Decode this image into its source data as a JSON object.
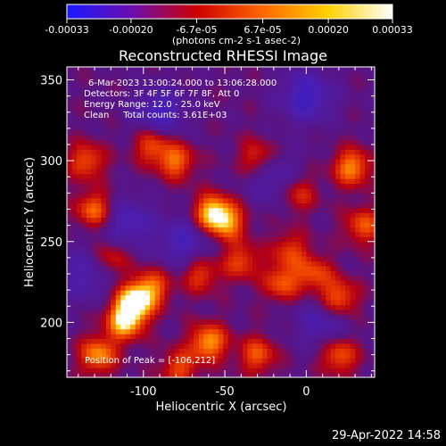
{
  "chart_data": {
    "type": "heatmap",
    "title": "Reconstructed RHESSI Image",
    "xlabel": "Heliocentric X (arcsec)",
    "ylabel": "Heliocentric Y (arcsec)",
    "xlim": [
      -147,
      42
    ],
    "ylim": [
      166,
      358
    ],
    "x_ticks": [
      -100,
      -50,
      0
    ],
    "y_ticks": [
      200,
      250,
      300,
      350
    ],
    "colorbar": {
      "range": [
        -0.00033,
        0.00033
      ],
      "tick_values": [
        -0.00033,
        -0.0002,
        -6.7e-05,
        6.7e-05,
        0.0002,
        0.00033
      ],
      "tick_labels": [
        "-0.00033",
        "-0.00020",
        "-6.7e-05",
        "6.7e-05",
        "0.00020",
        "0.00033"
      ],
      "unit_label": "(photons cm-2 s-1 asec-2)",
      "colors": [
        "#1a1aff",
        "#6a0dad",
        "#cc0000",
        "#ff6600",
        "#ffd000",
        "#ffffff"
      ]
    },
    "annotations": [
      "6-Mar-2023 13:00:24.000 to 13:06:28.000",
      "Detectors: 3F 4F 5F 6F 7F 8F, Att 0",
      "Energy Range: 12.0 - 25.0 keV",
      "Clean     Total counts: 3.61E+03"
    ],
    "peak_label": "Position of Peak = [-106,212]",
    "peak": [
      -106,
      212
    ],
    "blobs": [
      {
        "x": -106,
        "y": 212,
        "v": 1.0
      },
      {
        "x": -112,
        "y": 200,
        "v": 0.75
      },
      {
        "x": -95,
        "y": 222,
        "v": 0.6
      },
      {
        "x": -58,
        "y": 268,
        "v": 0.85
      },
      {
        "x": -48,
        "y": 262,
        "v": 0.6
      },
      {
        "x": -60,
        "y": 188,
        "v": 0.75
      },
      {
        "x": -30,
        "y": 180,
        "v": 0.55
      },
      {
        "x": -78,
        "y": 172,
        "v": 0.5
      },
      {
        "x": -128,
        "y": 180,
        "v": 0.7
      },
      {
        "x": -130,
        "y": 270,
        "v": 0.65
      },
      {
        "x": -135,
        "y": 300,
        "v": 0.55
      },
      {
        "x": -80,
        "y": 300,
        "v": 0.6
      },
      {
        "x": -95,
        "y": 310,
        "v": 0.55
      },
      {
        "x": -30,
        "y": 302,
        "v": 0.5
      },
      {
        "x": 28,
        "y": 296,
        "v": 0.7
      },
      {
        "x": 35,
        "y": 260,
        "v": 0.55
      },
      {
        "x": 20,
        "y": 215,
        "v": 0.65
      },
      {
        "x": 5,
        "y": 230,
        "v": 0.5
      },
      {
        "x": -15,
        "y": 225,
        "v": 0.55
      },
      {
        "x": -40,
        "y": 238,
        "v": 0.5
      },
      {
        "x": -65,
        "y": 230,
        "v": 0.5
      },
      {
        "x": 20,
        "y": 180,
        "v": 0.6
      },
      {
        "x": -10,
        "y": 245,
        "v": 0.45
      },
      {
        "x": -120,
        "y": 240,
        "v": 0.45
      },
      {
        "x": -5,
        "y": 280,
        "v": 0.45
      }
    ],
    "cold_spots": [
      {
        "x": -90,
        "y": 330,
        "v": -0.5
      },
      {
        "x": 0,
        "y": 340,
        "v": -0.55
      },
      {
        "x": -20,
        "y": 290,
        "v": -0.4
      },
      {
        "x": -110,
        "y": 262,
        "v": -0.45
      },
      {
        "x": -75,
        "y": 250,
        "v": -0.45
      },
      {
        "x": 10,
        "y": 200,
        "v": -0.4
      },
      {
        "x": -135,
        "y": 230,
        "v": -0.4
      }
    ]
  },
  "timestamp": "29-Apr-2022 14:58"
}
